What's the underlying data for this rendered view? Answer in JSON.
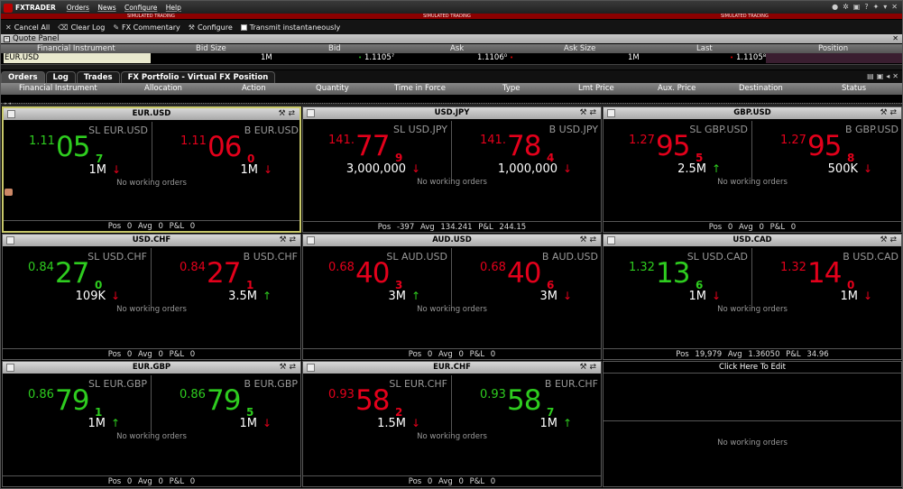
{
  "app": {
    "title": "FXTRADER",
    "menu": [
      "Orders",
      "News",
      "Configure",
      "Help"
    ],
    "sim_label": "SIMULATED TRADING"
  },
  "toolbar": {
    "cancel_all": "Cancel All",
    "clear_log": "Clear Log",
    "fx_commentary": "FX Commentary",
    "configure": "Configure",
    "transmit": "Transmit instantaneously"
  },
  "quote_panel": {
    "title": "Quote Panel",
    "columns": {
      "instrument": "Financial Instrument",
      "bid_size": "Bid Size",
      "bid": "Bid",
      "ask": "Ask",
      "ask_size": "Ask Size",
      "last": "Last",
      "position": "Position"
    },
    "row": {
      "instrument": "EUR.USD",
      "bid_size": "1M",
      "bid": "1.1105⁷",
      "ask": "1.1106⁰",
      "ask_size": "1M",
      "last": "1.1105⁸",
      "position": ""
    }
  },
  "tabs": [
    "Orders",
    "Log",
    "Trades",
    "FX Portfolio - Virtual FX Position"
  ],
  "orders_columns": {
    "instrument": "Financial Instrument",
    "allocation": "Allocation",
    "action": "Action",
    "quantity": "Quantity",
    "tif": "Time in Force",
    "type": "Type",
    "lmt": "Lmt Price",
    "aux": "Aux. Price",
    "dest": "Destination",
    "status": "Status"
  },
  "common": {
    "no_orders": "No working orders",
    "edit": "Click Here To Edit"
  },
  "tiles": [
    {
      "pair": "EUR.USD",
      "sell": {
        "label": "SL EUR.USD",
        "prefix": "1.11",
        "big": "05",
        "pip": "7",
        "size": "1M",
        "arrow": "↓",
        "color": "green"
      },
      "buy": {
        "label": "B EUR.USD",
        "prefix": "1.11",
        "big": "06",
        "pip": "0",
        "size": "1M",
        "arrow": "↓",
        "color": "red"
      },
      "footer": "Pos 0 Avg 0 P&L 0",
      "selected": true
    },
    {
      "pair": "USD.JPY",
      "sell": {
        "label": "SL USD.JPY",
        "prefix": "141.",
        "big": "77",
        "pip": "9",
        "size": "3,000,000",
        "arrow": "↓",
        "color": "red"
      },
      "buy": {
        "label": "B USD.JPY",
        "prefix": "141.",
        "big": "78",
        "pip": "4",
        "size": "1,000,000",
        "arrow": "↓",
        "color": "red"
      },
      "footer": "Pos -397 Avg 134.241 P&L 244.15"
    },
    {
      "pair": "GBP.USD",
      "sell": {
        "label": "SL GBP.USD",
        "prefix": "1.27",
        "big": "95",
        "pip": "5",
        "size": "2.5M",
        "arrow": "↑",
        "color": "red"
      },
      "buy": {
        "label": "B GBP.USD",
        "prefix": "1.27",
        "big": "95",
        "pip": "8",
        "size": "500K",
        "arrow": "↓",
        "color": "red"
      },
      "footer": "Pos 0 Avg 0 P&L 0"
    },
    {
      "pair": "USD.CHF",
      "sell": {
        "label": "SL USD.CHF",
        "prefix": "0.84",
        "big": "27",
        "pip": "0",
        "size": "109K",
        "arrow": "↓",
        "color": "green"
      },
      "buy": {
        "label": "B USD.CHF",
        "prefix": "0.84",
        "big": "27",
        "pip": "1",
        "size": "3.5M",
        "arrow": "↑",
        "color": "red"
      },
      "footer": "Pos 0 Avg 0 P&L 0"
    },
    {
      "pair": "AUD.USD",
      "sell": {
        "label": "SL AUD.USD",
        "prefix": "0.68",
        "big": "40",
        "pip": "3",
        "size": "3M",
        "arrow": "↑",
        "color": "red"
      },
      "buy": {
        "label": "B AUD.USD",
        "prefix": "0.68",
        "big": "40",
        "pip": "6",
        "size": "3M",
        "arrow": "↓",
        "color": "red"
      },
      "footer": "Pos 0 Avg 0 P&L 0"
    },
    {
      "pair": "USD.CAD",
      "sell": {
        "label": "SL USD.CAD",
        "prefix": "1.32",
        "big": "13",
        "pip": "6",
        "size": "1M",
        "arrow": "↓",
        "color": "green"
      },
      "buy": {
        "label": "B USD.CAD",
        "prefix": "1.32",
        "big": "14",
        "pip": "0",
        "size": "1M",
        "arrow": "↓",
        "color": "red"
      },
      "footer": "Pos 19,979 Avg 1.36050 P&L 34.96"
    },
    {
      "pair": "EUR.GBP",
      "sell": {
        "label": "SL EUR.GBP",
        "prefix": "0.86",
        "big": "79",
        "pip": "1",
        "size": "1M",
        "arrow": "↑",
        "color": "green"
      },
      "buy": {
        "label": "B EUR.GBP",
        "prefix": "0.86",
        "big": "79",
        "pip": "5",
        "size": "1M",
        "arrow": "↓",
        "color": "green"
      },
      "footer": "Pos 0 Avg 0 P&L 0"
    },
    {
      "pair": "EUR.CHF",
      "sell": {
        "label": "SL EUR.CHF",
        "prefix": "0.93",
        "big": "58",
        "pip": "2",
        "size": "1.5M",
        "arrow": "↓",
        "color": "red"
      },
      "buy": {
        "label": "B EUR.CHF",
        "prefix": "0.93",
        "big": "58",
        "pip": "7",
        "size": "1M",
        "arrow": "↑",
        "color": "green"
      },
      "footer": "Pos 0 Avg 0 P&L 0"
    }
  ],
  "colors": {
    "green": "#2ecc1f",
    "red": "#e3001b",
    "sim_bar": "#8c0000",
    "selected_border": "#c8c86a"
  }
}
